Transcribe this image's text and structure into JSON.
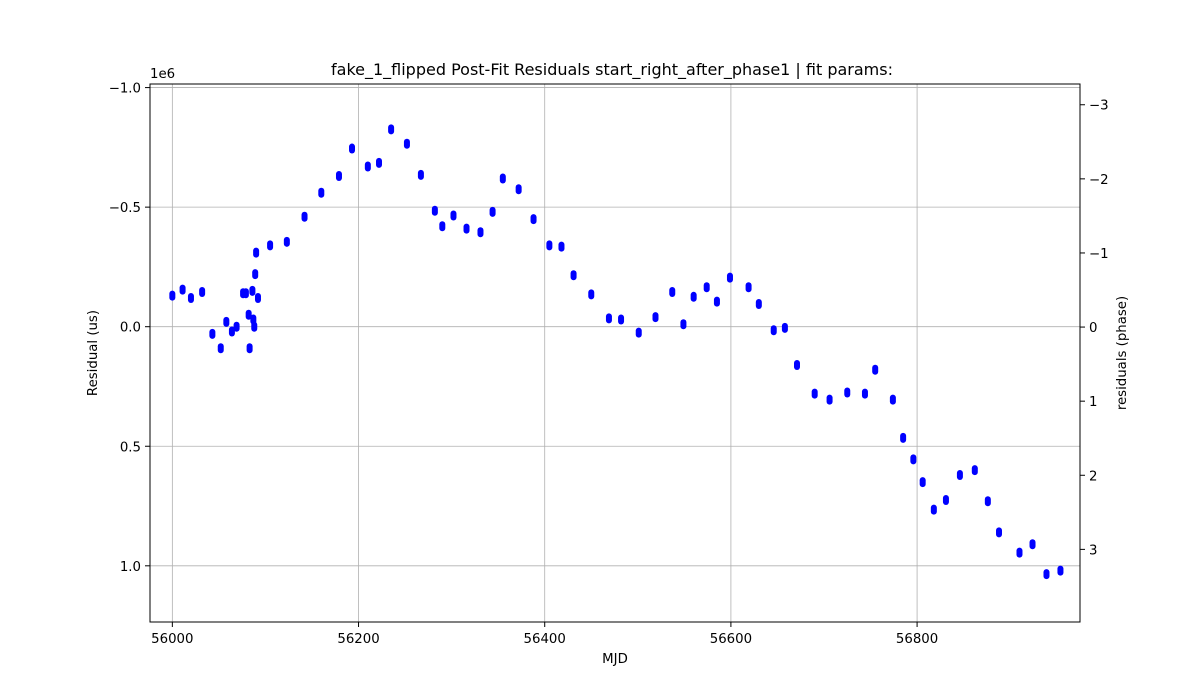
{
  "chart_data": {
    "type": "scatter",
    "title": "fake_1_flipped Post-Fit Residuals start_right_after_phase1 | fit params:",
    "xlabel": "MJD",
    "ylabel": "Residual (us)",
    "y2label": "residuals (phase)",
    "offset_label": "1e6",
    "xlim": [
      55976,
      56975
    ],
    "ylim": [
      1.235,
      -1.015
    ],
    "y_inverted": true,
    "y2lim": [
      3.98,
      -3.28
    ],
    "x_ticks": [
      56000,
      56200,
      56400,
      56600,
      56800
    ],
    "x_tick_labels": [
      "56000",
      "56200",
      "56400",
      "56600",
      "56800"
    ],
    "y_ticks": [
      -1.0,
      -0.5,
      0.0,
      0.5,
      1.0
    ],
    "y_tick_labels": [
      "−1.0",
      "−0.5",
      "0.0",
      "0.5",
      "1.0"
    ],
    "y2_ticks": [
      -3,
      -2,
      -1,
      0,
      1,
      2,
      3
    ],
    "y2_tick_labels": [
      "−3",
      "−2",
      "−1",
      "0",
      "1",
      "2",
      "3"
    ],
    "grid": true,
    "marker_color": "#0000ff",
    "points": [
      {
        "x": 56000,
        "y": -0.13
      },
      {
        "x": 56011,
        "y": -0.155
      },
      {
        "x": 56020,
        "y": -0.12
      },
      {
        "x": 56032,
        "y": -0.145
      },
      {
        "x": 56043,
        "y": 0.03
      },
      {
        "x": 56052,
        "y": 0.09
      },
      {
        "x": 56058,
        "y": -0.02
      },
      {
        "x": 56064,
        "y": 0.02
      },
      {
        "x": 56069,
        "y": 0.0
      },
      {
        "x": 56076,
        "y": -0.14
      },
      {
        "x": 56079,
        "y": -0.14
      },
      {
        "x": 56082,
        "y": -0.05
      },
      {
        "x": 56083,
        "y": 0.09
      },
      {
        "x": 56086,
        "y": -0.15
      },
      {
        "x": 56087,
        "y": -0.03
      },
      {
        "x": 56088,
        "y": 0.0
      },
      {
        "x": 56089,
        "y": -0.22
      },
      {
        "x": 56090,
        "y": -0.31
      },
      {
        "x": 56092,
        "y": -0.12
      },
      {
        "x": 56105,
        "y": -0.34
      },
      {
        "x": 56123,
        "y": -0.355
      },
      {
        "x": 56142,
        "y": -0.46
      },
      {
        "x": 56160,
        "y": -0.56
      },
      {
        "x": 56179,
        "y": -0.63
      },
      {
        "x": 56193,
        "y": -0.745
      },
      {
        "x": 56210,
        "y": -0.67
      },
      {
        "x": 56222,
        "y": -0.685
      },
      {
        "x": 56235,
        "y": -0.825
      },
      {
        "x": 56252,
        "y": -0.765
      },
      {
        "x": 56267,
        "y": -0.635
      },
      {
        "x": 56282,
        "y": -0.485
      },
      {
        "x": 56290,
        "y": -0.42
      },
      {
        "x": 56302,
        "y": -0.465
      },
      {
        "x": 56316,
        "y": -0.41
      },
      {
        "x": 56331,
        "y": -0.395
      },
      {
        "x": 56344,
        "y": -0.48
      },
      {
        "x": 56355,
        "y": -0.62
      },
      {
        "x": 56372,
        "y": -0.575
      },
      {
        "x": 56388,
        "y": -0.45
      },
      {
        "x": 56405,
        "y": -0.34
      },
      {
        "x": 56418,
        "y": -0.335
      },
      {
        "x": 56431,
        "y": -0.215
      },
      {
        "x": 56450,
        "y": -0.135
      },
      {
        "x": 56469,
        "y": -0.035
      },
      {
        "x": 56482,
        "y": -0.03
      },
      {
        "x": 56501,
        "y": 0.025
      },
      {
        "x": 56519,
        "y": -0.04
      },
      {
        "x": 56537,
        "y": -0.145
      },
      {
        "x": 56549,
        "y": -0.01
      },
      {
        "x": 56560,
        "y": -0.125
      },
      {
        "x": 56574,
        "y": -0.165
      },
      {
        "x": 56585,
        "y": -0.105
      },
      {
        "x": 56599,
        "y": -0.205
      },
      {
        "x": 56619,
        "y": -0.165
      },
      {
        "x": 56630,
        "y": -0.095
      },
      {
        "x": 56646,
        "y": 0.015
      },
      {
        "x": 56658,
        "y": 0.005
      },
      {
        "x": 56671,
        "y": 0.16
      },
      {
        "x": 56690,
        "y": 0.28
      },
      {
        "x": 56706,
        "y": 0.305
      },
      {
        "x": 56725,
        "y": 0.275
      },
      {
        "x": 56744,
        "y": 0.28
      },
      {
        "x": 56755,
        "y": 0.18
      },
      {
        "x": 56774,
        "y": 0.305
      },
      {
        "x": 56785,
        "y": 0.465
      },
      {
        "x": 56796,
        "y": 0.555
      },
      {
        "x": 56806,
        "y": 0.65
      },
      {
        "x": 56818,
        "y": 0.765
      },
      {
        "x": 56831,
        "y": 0.725
      },
      {
        "x": 56846,
        "y": 0.62
      },
      {
        "x": 56862,
        "y": 0.6
      },
      {
        "x": 56876,
        "y": 0.73
      },
      {
        "x": 56888,
        "y": 0.86
      },
      {
        "x": 56910,
        "y": 0.945
      },
      {
        "x": 56924,
        "y": 0.91
      },
      {
        "x": 56939,
        "y": 1.035
      },
      {
        "x": 56954,
        "y": 1.02
      }
    ]
  }
}
